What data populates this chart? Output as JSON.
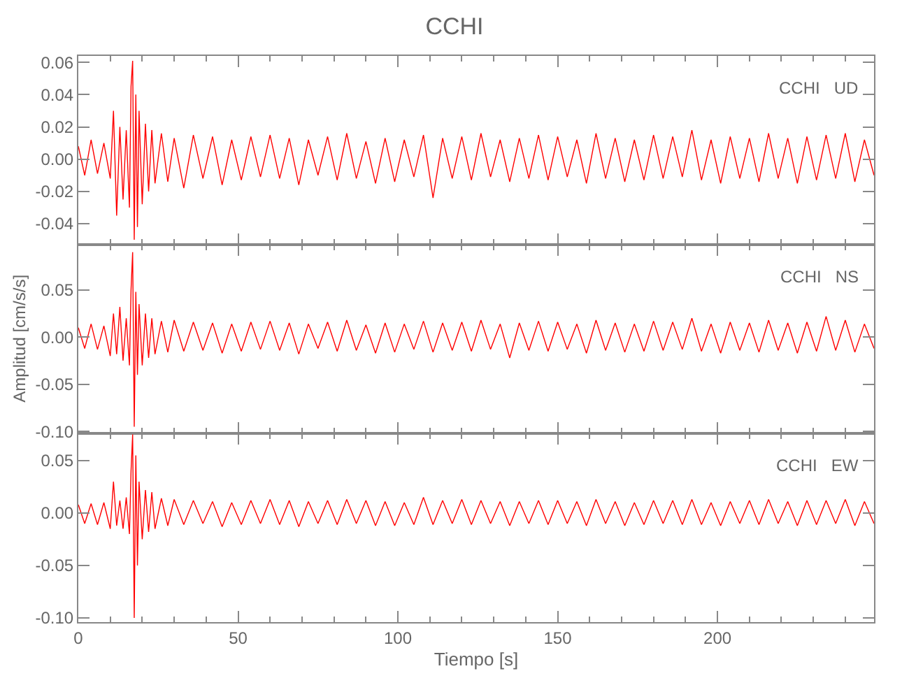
{
  "chart_data": [
    {
      "type": "line",
      "title": "CCHI",
      "annotations": [
        "CCHI   UD"
      ],
      "tick_labels": "y",
      "marker": "none",
      "line_style": "solid",
      "x": [
        0,
        2,
        4,
        6,
        8,
        10,
        11,
        12,
        13,
        14,
        15,
        16,
        16.5,
        17,
        17.5,
        18,
        18.5,
        19,
        20,
        21,
        22,
        23,
        24,
        26,
        28,
        30,
        33,
        36,
        39,
        42,
        45,
        48,
        51,
        54,
        57,
        60,
        63,
        66,
        69,
        72,
        75,
        78,
        81,
        84,
        87,
        90,
        93,
        96,
        99,
        102,
        105,
        108,
        111,
        114,
        117,
        120,
        123,
        126,
        129,
        132,
        135,
        138,
        141,
        144,
        147,
        150,
        153,
        156,
        159,
        162,
        165,
        168,
        171,
        174,
        177,
        180,
        183,
        186,
        189,
        192,
        195,
        198,
        201,
        204,
        207,
        210,
        213,
        216,
        219,
        222,
        225,
        228,
        231,
        234,
        237,
        240,
        243,
        246,
        249
      ],
      "xlim": [
        0,
        249
      ],
      "xticks": [
        0,
        50,
        100,
        150,
        200
      ],
      "ylim": [
        -0.053,
        0.064
      ],
      "yticks": [
        {
          "value": -0.04,
          "label": "-0.04"
        },
        {
          "value": -0.02,
          "label": "-0.02"
        },
        {
          "value": 0,
          "label": "0.00"
        },
        {
          "value": 0.02,
          "label": "0.02"
        },
        {
          "value": 0.04,
          "label": "0.04"
        },
        {
          "value": 0.06,
          "label": "0.06"
        }
      ],
      "series": [
        {
          "color": "#ff0000",
          "values": [
            0.008,
            -0.01,
            0.012,
            -0.009,
            0.01,
            -0.012,
            0.03,
            -0.035,
            0.02,
            -0.025,
            0.018,
            -0.03,
            0.045,
            0.061,
            -0.05,
            0.04,
            -0.042,
            0.03,
            -0.028,
            0.022,
            -0.02,
            0.018,
            -0.015,
            0.016,
            -0.014,
            0.013,
            -0.018,
            0.015,
            -0.012,
            0.014,
            -0.016,
            0.012,
            -0.013,
            0.014,
            -0.011,
            0.015,
            -0.012,
            0.013,
            -0.016,
            0.012,
            -0.01,
            0.014,
            -0.013,
            0.016,
            -0.012,
            0.011,
            -0.015,
            0.013,
            -0.014,
            0.012,
            -0.011,
            0.015,
            -0.024,
            0.013,
            -0.012,
            0.014,
            -0.013,
            0.016,
            -0.011,
            0.012,
            -0.014,
            0.013,
            -0.012,
            0.015,
            -0.013,
            0.014,
            -0.011,
            0.012,
            -0.015,
            0.016,
            -0.012,
            0.013,
            -0.014,
            0.012,
            -0.013,
            0.015,
            -0.012,
            0.014,
            -0.011,
            0.018,
            -0.013,
            0.012,
            -0.015,
            0.014,
            -0.012,
            0.013,
            -0.014,
            0.016,
            -0.012,
            0.013,
            -0.015,
            0.014,
            -0.013,
            0.015,
            -0.012,
            0.016,
            -0.014,
            0.012,
            -0.01
          ]
        }
      ]
    },
    {
      "type": "line",
      "ylabel": "Amplitud [cm/s/s]",
      "annotations": [
        "CCHI   NS"
      ],
      "tick_labels": "y",
      "marker": "none",
      "line_style": "solid",
      "x": [
        0,
        2,
        4,
        6,
        8,
        10,
        11,
        12,
        13,
        14,
        15,
        16,
        16.5,
        17,
        17.5,
        18,
        18.5,
        19,
        20,
        21,
        22,
        23,
        24,
        26,
        28,
        30,
        33,
        36,
        39,
        42,
        45,
        48,
        51,
        54,
        57,
        60,
        63,
        66,
        69,
        72,
        75,
        78,
        81,
        84,
        87,
        90,
        93,
        96,
        99,
        102,
        105,
        108,
        111,
        114,
        117,
        120,
        123,
        126,
        129,
        132,
        135,
        138,
        141,
        144,
        147,
        150,
        153,
        156,
        159,
        162,
        165,
        168,
        171,
        174,
        177,
        180,
        183,
        186,
        189,
        192,
        195,
        198,
        201,
        204,
        207,
        210,
        213,
        216,
        219,
        222,
        225,
        228,
        231,
        234,
        237,
        240,
        243,
        246,
        249
      ],
      "xlim": [
        0,
        249
      ],
      "xticks": [
        0,
        50,
        100,
        150,
        200
      ],
      "ylim": [
        -0.102,
        0.098
      ],
      "yticks": [
        {
          "value": -0.1,
          "label": "-0.10"
        },
        {
          "value": -0.05,
          "label": "-0.05"
        },
        {
          "value": 0,
          "label": "0.00"
        },
        {
          "value": 0.05,
          "label": "0.05"
        }
      ],
      "series": [
        {
          "color": "#ff0000",
          "values": [
            0.01,
            -0.012,
            0.014,
            -0.013,
            0.012,
            -0.02,
            0.025,
            -0.018,
            0.032,
            -0.025,
            0.02,
            -0.03,
            0.05,
            0.09,
            -0.095,
            0.048,
            -0.04,
            0.035,
            -0.03,
            0.025,
            -0.022,
            0.02,
            -0.018,
            0.017,
            -0.016,
            0.018,
            -0.015,
            0.016,
            -0.014,
            0.015,
            -0.017,
            0.014,
            -0.015,
            0.016,
            -0.013,
            0.017,
            -0.014,
            0.015,
            -0.018,
            0.014,
            -0.012,
            0.016,
            -0.015,
            0.018,
            -0.014,
            0.013,
            -0.017,
            0.015,
            -0.016,
            0.014,
            -0.013,
            0.017,
            -0.016,
            0.015,
            -0.014,
            0.016,
            -0.015,
            0.018,
            -0.013,
            0.014,
            -0.022,
            0.015,
            -0.014,
            0.017,
            -0.015,
            0.016,
            -0.013,
            0.014,
            -0.017,
            0.018,
            -0.014,
            0.015,
            -0.016,
            0.014,
            -0.015,
            0.017,
            -0.014,
            0.016,
            -0.013,
            0.02,
            -0.015,
            0.014,
            -0.017,
            0.016,
            -0.014,
            0.015,
            -0.016,
            0.018,
            -0.014,
            0.015,
            -0.017,
            0.016,
            -0.015,
            0.022,
            -0.014,
            0.018,
            -0.016,
            0.014,
            -0.012
          ]
        }
      ]
    },
    {
      "type": "line",
      "xlabel": "Tiempo [s]",
      "annotations": [
        "CCHI   EW"
      ],
      "marker": "none",
      "line_style": "solid",
      "x": [
        0,
        2,
        4,
        6,
        8,
        10,
        11,
        12,
        13,
        14,
        15,
        16,
        16.5,
        17,
        17.5,
        18,
        18.5,
        19,
        20,
        21,
        22,
        23,
        24,
        26,
        28,
        30,
        33,
        36,
        39,
        42,
        45,
        48,
        51,
        54,
        57,
        60,
        63,
        66,
        69,
        72,
        75,
        78,
        81,
        84,
        87,
        90,
        93,
        96,
        99,
        102,
        105,
        108,
        111,
        114,
        117,
        120,
        123,
        126,
        129,
        132,
        135,
        138,
        141,
        144,
        147,
        150,
        153,
        156,
        159,
        162,
        165,
        168,
        171,
        174,
        177,
        180,
        183,
        186,
        189,
        192,
        195,
        198,
        201,
        204,
        207,
        210,
        213,
        216,
        219,
        222,
        225,
        228,
        231,
        234,
        237,
        240,
        243,
        246,
        249
      ],
      "xlim": [
        0,
        249
      ],
      "xticks": [
        0,
        50,
        100,
        150,
        200
      ],
      "ylim": [
        -0.104,
        0.076
      ],
      "yticks": [
        {
          "value": -0.1,
          "label": "-0.10"
        },
        {
          "value": -0.05,
          "label": "-0.05"
        },
        {
          "value": 0,
          "label": "0.00"
        },
        {
          "value": 0.05,
          "label": "0.05"
        }
      ],
      "series": [
        {
          "color": "#ff0000",
          "values": [
            0.008,
            -0.01,
            0.009,
            -0.011,
            0.01,
            -0.015,
            0.03,
            -0.012,
            0.012,
            -0.015,
            0.015,
            -0.02,
            0.04,
            0.075,
            -0.1,
            0.055,
            -0.05,
            0.03,
            -0.025,
            0.022,
            -0.018,
            0.02,
            -0.015,
            0.014,
            -0.012,
            0.013,
            -0.011,
            0.012,
            -0.01,
            0.011,
            -0.013,
            0.01,
            -0.011,
            0.012,
            -0.01,
            0.013,
            -0.011,
            0.012,
            -0.013,
            0.011,
            -0.01,
            0.012,
            -0.011,
            0.013,
            -0.01,
            0.012,
            -0.012,
            0.011,
            -0.012,
            0.01,
            -0.011,
            0.015,
            -0.011,
            0.012,
            -0.01,
            0.013,
            -0.011,
            0.012,
            -0.01,
            0.011,
            -0.012,
            0.011,
            -0.01,
            0.012,
            -0.011,
            0.012,
            -0.01,
            0.011,
            -0.012,
            0.013,
            -0.01,
            0.011,
            -0.012,
            0.01,
            -0.011,
            0.012,
            -0.01,
            0.012,
            -0.011,
            0.013,
            -0.011,
            0.01,
            -0.012,
            0.011,
            -0.01,
            0.012,
            -0.011,
            0.013,
            -0.01,
            0.011,
            -0.012,
            0.012,
            -0.011,
            0.012,
            -0.01,
            0.013,
            -0.012,
            0.011,
            -0.01
          ]
        }
      ]
    }
  ]
}
